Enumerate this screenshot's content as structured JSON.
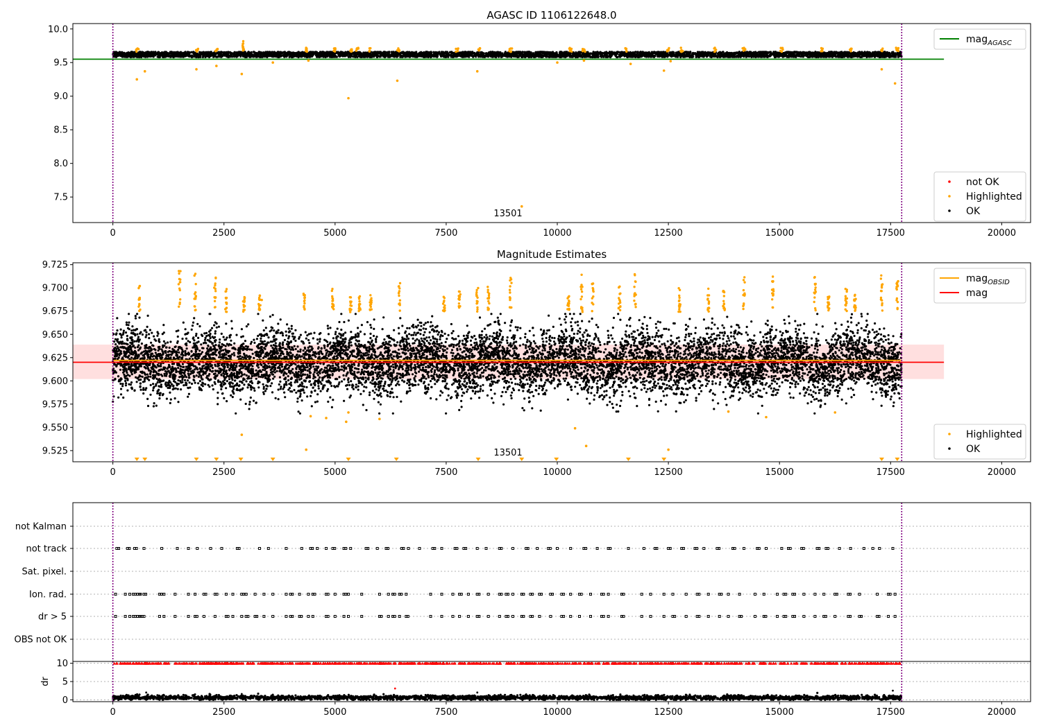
{
  "figure": {
    "background": "#ffffff"
  },
  "colors": {
    "ok": "#000000",
    "highlighted": "#ffa500",
    "not_ok": "#ff0000",
    "agasc_line": "#008000",
    "mag_line": "#ff0000",
    "mag_obsid_line": "#ffa500",
    "mag_band": "#ffc0c0",
    "vline": "#800080",
    "grid": "#b0b0b0"
  },
  "chart_data": [
    {
      "id": "agasc",
      "type": "scatter",
      "title": "AGASC ID 1106122648.0",
      "xlim": [
        -900,
        20650
      ],
      "ylim": [
        7.12,
        10.08
      ],
      "xticks": [
        0,
        2500,
        5000,
        7500,
        10000,
        12500,
        15000,
        17500,
        20000
      ],
      "xtick_labels": [
        "0",
        "2500",
        "5000",
        "7500",
        "10000",
        "12500",
        "15000",
        "17500",
        "20000"
      ],
      "yticks": [
        7.5,
        8.0,
        8.5,
        9.0,
        9.5,
        10.0
      ],
      "ytick_labels": [
        "7.5",
        "8.0",
        "8.5",
        "9.0",
        "9.5",
        "10.0"
      ],
      "obs_range": [
        0,
        17750
      ],
      "obsid_label": "13501",
      "obsid_label_pos": [
        8500,
        7.23
      ],
      "mag_agasc": 9.55,
      "mag_agasc_extent": [
        -900,
        18700
      ],
      "ok_band": [
        9.58,
        9.66
      ],
      "ok_count": 4500,
      "highlighted_band": [
        9.66,
        9.72
      ],
      "highlighted_clusters": [
        550,
        1900,
        2330,
        2930,
        4350,
        5000,
        5350,
        5500,
        5800,
        6430,
        7750,
        8250,
        8950,
        10300,
        10600,
        11550,
        12500,
        12800,
        13550,
        14200,
        15050,
        15950,
        16600,
        17300,
        17650
      ],
      "highlighted_outliers": [
        [
          540,
          9.25
        ],
        [
          720,
          9.37
        ],
        [
          1880,
          9.4
        ],
        [
          2330,
          9.45
        ],
        [
          2900,
          9.33
        ],
        [
          3600,
          9.5
        ],
        [
          4400,
          9.53
        ],
        [
          5300,
          8.97
        ],
        [
          6400,
          9.23
        ],
        [
          8200,
          9.37
        ],
        [
          10000,
          9.5
        ],
        [
          10600,
          9.53
        ],
        [
          11650,
          9.48
        ],
        [
          12400,
          9.38
        ],
        [
          12550,
          9.52
        ],
        [
          17300,
          9.4
        ],
        [
          17600,
          9.19
        ],
        [
          9200,
          7.36
        ]
      ],
      "legends": [
        {
          "position": "upper-right",
          "entries": [
            {
              "label": "mag",
              "sub": "AGASC",
              "kind": "line",
              "color": "#008000"
            }
          ]
        },
        {
          "position": "lower-right",
          "entries": [
            {
              "label": "not OK",
              "kind": "dot",
              "color": "#ff0000"
            },
            {
              "label": "Highlighted",
              "kind": "dot",
              "color": "#ffa500"
            },
            {
              "label": "OK",
              "kind": "dot",
              "color": "#000000"
            }
          ]
        }
      ]
    },
    {
      "id": "estimates",
      "type": "scatter",
      "title": "Magnitude Estimates",
      "xlim": [
        -900,
        20650
      ],
      "ylim": [
        9.513,
        9.727
      ],
      "xticks": [
        0,
        2500,
        5000,
        7500,
        10000,
        12500,
        15000,
        17500,
        20000
      ],
      "xtick_labels": [
        "0",
        "2500",
        "5000",
        "7500",
        "10000",
        "12500",
        "15000",
        "17500",
        "20000"
      ],
      "yticks": [
        9.525,
        9.55,
        9.575,
        9.6,
        9.625,
        9.65,
        9.675,
        9.7,
        9.725
      ],
      "ytick_labels": [
        "9.525",
        "9.550",
        "9.575",
        "9.600",
        "9.625",
        "9.650",
        "9.675",
        "9.700",
        "9.725"
      ],
      "obs_range": [
        0,
        17750
      ],
      "obsid_label": "13501",
      "obsid_label_pos": [
        8500,
        9.519
      ],
      "mag": 9.62,
      "mag_obsid": 9.622,
      "mag_band": [
        9.602,
        9.639
      ],
      "mag_extent": [
        -900,
        18700
      ],
      "ok_center": 9.62,
      "ok_spread": 0.017,
      "ok_count": 9000,
      "highlighted_clusters": [
        600,
        1500,
        1850,
        2300,
        2550,
        2950,
        3300,
        4300,
        4950,
        5350,
        5550,
        5800,
        6450,
        7450,
        7800,
        8200,
        8450,
        8950,
        10250,
        10550,
        10800,
        11400,
        11750,
        12750,
        13400,
        13750,
        14200,
        14850,
        15800,
        16100,
        16500,
        16700,
        17300,
        17650
      ],
      "highlighted_outliers": [
        [
          3350,
          9.687
        ],
        [
          4450,
          9.562
        ],
        [
          4800,
          9.56
        ],
        [
          5250,
          9.556
        ],
        [
          5300,
          9.566
        ],
        [
          6000,
          9.559
        ],
        [
          10400,
          9.549
        ],
        [
          10650,
          9.53
        ],
        [
          13850,
          9.567
        ],
        [
          14700,
          9.561
        ],
        [
          16250,
          9.566
        ],
        [
          2900,
          9.542
        ],
        [
          4350,
          9.526
        ],
        [
          12500,
          9.526
        ]
      ],
      "low_markers": [
        540,
        720,
        1880,
        2330,
        2880,
        3600,
        5300,
        6380,
        8220,
        9200,
        9980,
        11600,
        12400,
        17300,
        17650
      ],
      "legends": [
        {
          "position": "upper-right",
          "entries": [
            {
              "label": "mag",
              "sub": "OBSID",
              "kind": "line",
              "color": "#ffa500"
            },
            {
              "label": "mag",
              "kind": "line",
              "color": "#ff0000"
            }
          ]
        },
        {
          "position": "lower-right",
          "entries": [
            {
              "label": "Highlighted",
              "kind": "dot",
              "color": "#ffa500"
            },
            {
              "label": "OK",
              "kind": "dot",
              "color": "#000000"
            }
          ]
        }
      ]
    },
    {
      "id": "flags",
      "type": "scatter",
      "title": "",
      "xlim": [
        -900,
        20650
      ],
      "categories": [
        "not Kalman",
        "not track",
        "Sat. pixel.",
        "Ion. rad.",
        "dr > 5",
        "OBS not OK"
      ],
      "obs_range": [
        0,
        17750
      ],
      "flag_positions": {
        "not track": [
          90,
          330,
          490,
          700,
          1100,
          1450,
          1700,
          1900,
          2200,
          2450,
          2800,
          3300,
          3500,
          3900,
          4250,
          4450,
          4600,
          4800,
          4950,
          5200,
          5350,
          5700,
          5950,
          6150,
          6500,
          6650,
          6900,
          7200,
          7400,
          7700,
          7900,
          8200,
          8400,
          8700,
          9000,
          9300,
          9550,
          9800,
          10000,
          10300,
          10600,
          10900,
          11150,
          11600,
          11950,
          12200,
          12500,
          12800,
          13100,
          13300,
          13600,
          13950,
          14200,
          14500,
          14700,
          15050,
          15200,
          15500,
          15850,
          16050,
          16350,
          16600,
          16900,
          17100,
          17250,
          17550
        ],
        "Ion. rad.": [
          60,
          280,
          380,
          460,
          560,
          620,
          700,
          1050,
          1150,
          1400,
          1700,
          1850,
          2050,
          2300,
          2550,
          2700,
          2900,
          3000,
          3200,
          3400,
          3600,
          3900,
          4000,
          4200,
          4400,
          4500,
          4800,
          5000,
          5200,
          5300,
          5600,
          6000,
          6200,
          6300,
          6450,
          6600,
          7150,
          7400,
          7650,
          7800,
          8000,
          8200,
          8450,
          8700,
          8850,
          9000,
          9200,
          9400,
          9600,
          9850,
          10100,
          10300,
          10500,
          10750,
          11000,
          11150,
          11450,
          11900,
          12100,
          12400,
          12600,
          12900,
          13150,
          13400,
          13650,
          13850,
          14100,
          14450,
          14650,
          14950,
          15100,
          15300,
          15550,
          15800,
          16000,
          16250,
          16550,
          16800,
          17200,
          17450,
          17600
        ],
        "dr > 5": [
          60,
          280,
          380,
          460,
          560,
          620,
          700,
          1050,
          1150,
          1400,
          1700,
          1850,
          2050,
          2300,
          2550,
          2700,
          2900,
          3000,
          3200,
          3400,
          3600,
          3900,
          4000,
          4200,
          4400,
          4500,
          4800,
          5000,
          5200,
          5300,
          5600,
          6000,
          6200,
          6300,
          6450,
          6600,
          7150,
          7400,
          7650,
          7800,
          8000,
          8200,
          8450,
          8700,
          8850,
          9000,
          9200,
          9400,
          9600,
          9850,
          10100,
          10300,
          10500,
          10750,
          11000,
          11150,
          11450,
          11900,
          12100,
          12400,
          12600,
          12900,
          13150,
          13400,
          13650,
          13850,
          14100,
          14450,
          14650,
          14950,
          15100,
          15300,
          15550,
          15800,
          16000,
          16250,
          16550,
          16800,
          17200,
          17450,
          17600
        ]
      }
    },
    {
      "id": "dr",
      "type": "scatter",
      "title": "",
      "ylabel": "dr",
      "xlim": [
        -900,
        20650
      ],
      "ylim": [
        -0.5,
        10.5
      ],
      "xticks": [
        0,
        2500,
        5000,
        7500,
        10000,
        12500,
        15000,
        17500,
        20000
      ],
      "xtick_labels": [
        "0",
        "2500",
        "5000",
        "7500",
        "10000",
        "12500",
        "15000",
        "17500",
        "20000"
      ],
      "yticks": [
        0,
        5,
        10
      ],
      "ytick_labels": [
        "0",
        "5",
        "10"
      ],
      "obs_range": [
        0,
        17750
      ],
      "ok_level": 0.6,
      "ok_count": 3000,
      "capped_value": 10,
      "capped_count": 900,
      "outliers": [
        [
          750,
          2.0
        ],
        [
          1850,
          1.5
        ],
        [
          2900,
          1.6
        ],
        [
          6350,
          3.1
        ],
        [
          8200,
          2.0
        ],
        [
          9300,
          1.5
        ],
        [
          17550,
          2.5
        ]
      ]
    }
  ]
}
